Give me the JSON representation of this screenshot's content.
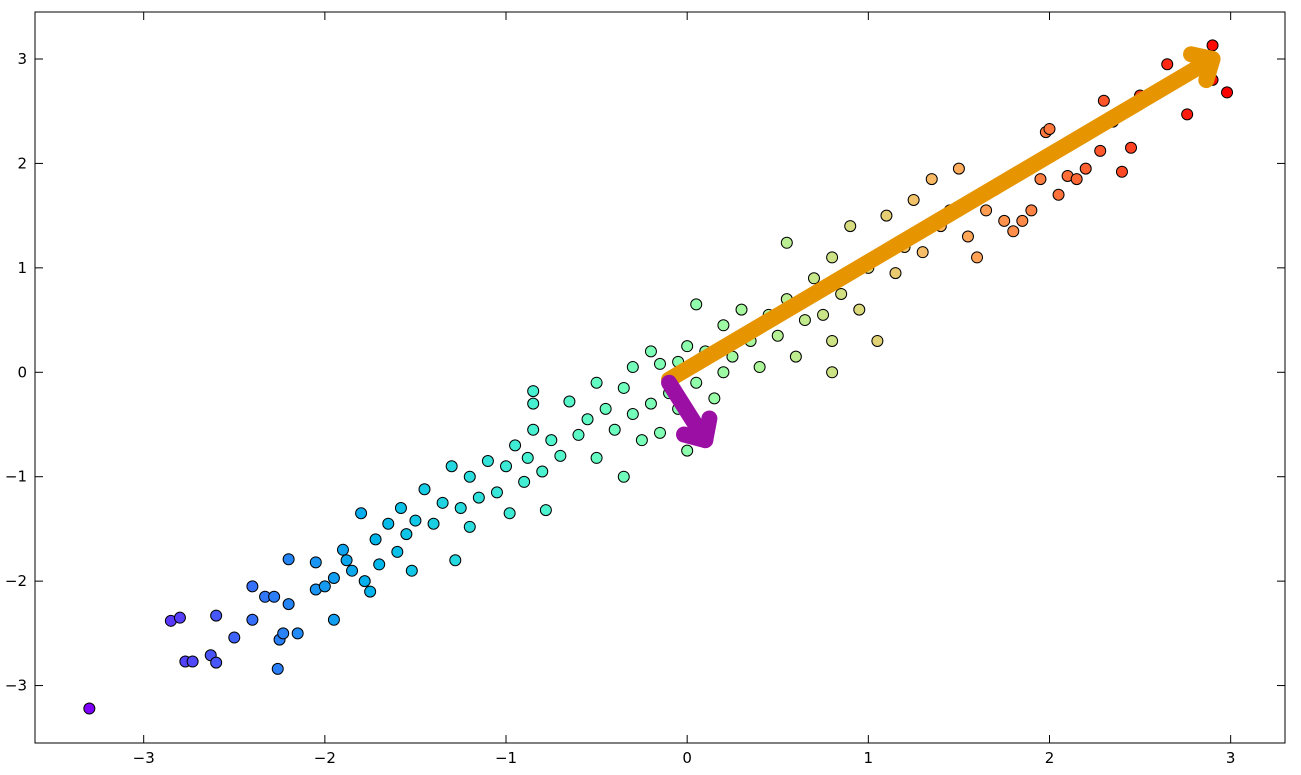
{
  "chart_data": {
    "type": "scatter",
    "colormap": "rainbow",
    "edgecolor": "#000000",
    "x": [
      -3.3,
      -2.85,
      -2.8,
      -2.77,
      -2.73,
      -2.63,
      -2.6,
      -2.6,
      -2.5,
      -2.4,
      -2.4,
      -2.33,
      -2.28,
      -2.26,
      -2.25,
      -2.23,
      -2.2,
      -2.2,
      -2.15,
      -2.05,
      -2.05,
      -2.0,
      -1.95,
      -1.95,
      -1.9,
      -1.88,
      -1.85,
      -1.8,
      -1.78,
      -1.75,
      -1.72,
      -1.7,
      -1.65,
      -1.6,
      -1.58,
      -1.55,
      -1.52,
      -1.5,
      -1.45,
      -1.4,
      -1.35,
      -1.3,
      -1.28,
      -1.25,
      -1.2,
      -1.2,
      -1.15,
      -1.1,
      -1.05,
      -1.0,
      -0.98,
      -0.95,
      -0.9,
      -0.88,
      -0.85,
      -0.85,
      -0.85,
      -0.8,
      -0.78,
      -0.75,
      -0.7,
      -0.65,
      -0.6,
      -0.55,
      -0.5,
      -0.5,
      -0.45,
      -0.4,
      -0.35,
      -0.35,
      -0.3,
      -0.3,
      -0.25,
      -0.2,
      -0.2,
      -0.15,
      -0.15,
      -0.1,
      -0.05,
      -0.05,
      0,
      0,
      0.05,
      0.05,
      0.1,
      0.15,
      0.2,
      0.2,
      0.25,
      0.3,
      0.35,
      0.4,
      0.45,
      0.5,
      0.55,
      0.55,
      0.6,
      0.65,
      0.7,
      0.75,
      0.8,
      0.8,
      0.85,
      0.8,
      0.9,
      0.95,
      1.0,
      1.05,
      1.1,
      1.15,
      1.2,
      1.25,
      1.3,
      1.35,
      1.4,
      1.45,
      1.5,
      1.55,
      1.6,
      1.65,
      1.7,
      1.75,
      1.8,
      1.85,
      1.9,
      1.95,
      1.98,
      2.0,
      2.05,
      2.1,
      2.15,
      2.2,
      2.3,
      2.28,
      2.35,
      2.4,
      2.45,
      2.5,
      2.65,
      2.76,
      2.9,
      2.98,
      2.9
    ],
    "y": [
      -3.22,
      -2.38,
      -2.35,
      -2.77,
      -2.77,
      -2.71,
      -2.78,
      -2.33,
      -2.54,
      -2.05,
      -2.37,
      -2.15,
      -2.15,
      -2.84,
      -2.56,
      -2.5,
      -2.22,
      -1.79,
      -2.5,
      -1.82,
      -2.08,
      -2.05,
      -2.37,
      -1.97,
      -1.7,
      -1.8,
      -1.9,
      -1.35,
      -2.0,
      -2.1,
      -1.6,
      -1.84,
      -1.45,
      -1.72,
      -1.3,
      -1.55,
      -1.9,
      -1.42,
      -1.12,
      -1.45,
      -1.25,
      -0.9,
      -1.8,
      -1.3,
      -1.0,
      -1.48,
      -1.2,
      -0.85,
      -1.15,
      -0.9,
      -1.35,
      -0.7,
      -1.05,
      -0.82,
      -0.55,
      -0.18,
      -0.3,
      -0.95,
      -1.32,
      -0.65,
      -0.8,
      -0.28,
      -0.6,
      -0.45,
      -0.1,
      -0.82,
      -0.35,
      -0.55,
      -1.0,
      -0.15,
      0.05,
      -0.4,
      -0.65,
      0.2,
      -0.3,
      0.08,
      -0.58,
      -0.2,
      0.1,
      -0.35,
      0.25,
      -0.75,
      0.65,
      -0.1,
      0.2,
      -0.25,
      0.45,
      0.0,
      0.15,
      0.6,
      0.3,
      0.05,
      0.55,
      0.35,
      1.24,
      0.7,
      0.15,
      0.5,
      0.9,
      0.55,
      1.1,
      0.3,
      0.75,
      0.0,
      1.4,
      0.6,
      1.0,
      0.3,
      1.5,
      0.95,
      1.2,
      1.65,
      1.15,
      1.85,
      1.4,
      1.55,
      1.95,
      1.3,
      1.1,
      1.55,
      1.75,
      1.45,
      1.35,
      1.45,
      1.55,
      1.85,
      2.3,
      2.33,
      1.7,
      1.88,
      1.85,
      1.95,
      2.6,
      2.12,
      2.4,
      1.92,
      2.15,
      2.65,
      2.95,
      2.47,
      3.13,
      2.68,
      2.8
    ],
    "arrows": [
      {
        "x": [
          -0.1,
          2.9
        ],
        "y": [
          -0.07,
          3.0
        ],
        "color": "#e69500"
      },
      {
        "x": [
          -0.1,
          0.1
        ],
        "y": [
          -0.1,
          -0.65
        ],
        "color": "#9b0fa4"
      }
    ],
    "xlim": [
      -3.6,
      3.3
    ],
    "ylim": [
      -3.55,
      3.45
    ],
    "xticks": [
      {
        "value": -3,
        "label": "−3"
      },
      {
        "value": -2,
        "label": "−2"
      },
      {
        "value": -1,
        "label": "−1"
      },
      0,
      1,
      2,
      3
    ],
    "yticks": [
      {
        "value": -3,
        "label": "−3"
      },
      {
        "value": -2,
        "label": "−2"
      },
      {
        "value": -1,
        "label": "−1"
      },
      0,
      1,
      2,
      3
    ]
  }
}
